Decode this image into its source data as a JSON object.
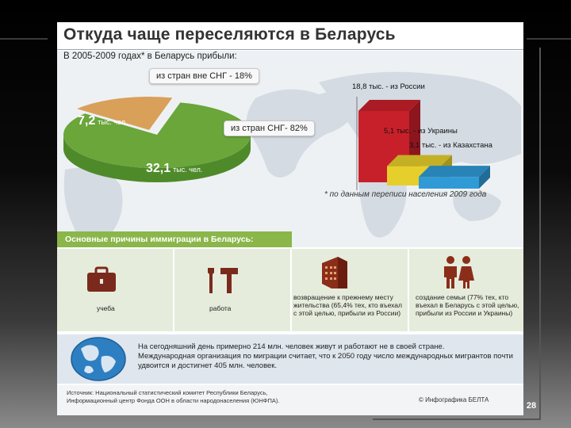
{
  "title": "Откуда чаще переселяются в Беларусь",
  "intro": "В 2005-2009 годах* в Беларусь прибыли:",
  "pie": {
    "callout_outside": "из стран вне СНГ - 18%",
    "callout_inside": "из стран СНГ- 82%",
    "small_value": "7,2",
    "small_unit": "тыс. чел.",
    "big_value": "32,1",
    "big_unit": "тыс. чел.",
    "shares": [
      18,
      82
    ],
    "colors": [
      "#d9a05a",
      "#6aa63a"
    ]
  },
  "bars": [
    {
      "label": "18,8 тыс. - из России",
      "value": 18.8,
      "color": "#c8202a"
    },
    {
      "label": "5,1 тыс. - из Украины",
      "value": 5.1,
      "color": "#e6cf2a"
    },
    {
      "label": "3,1 тыс. - из Казахстана",
      "value": 3.1,
      "color": "#2f9ad6"
    }
  ],
  "footnote": "* по данным переписи населения 2009 года",
  "reasons_header": "Основные причины иммиграции в Беларусь:",
  "reasons": [
    {
      "icon": "briefcase-icon",
      "label": "учеба"
    },
    {
      "icon": "tools-icon",
      "label": "работа"
    },
    {
      "icon": "building-icon",
      "label": "возвращение к прежнему месту жительства (65,4% тех, кто въехал с этой целью, прибыли из России)"
    },
    {
      "icon": "couple-icon",
      "label": "создание семьи (77% тех, кто въехал в Беларусь с этой целью, прибыли из России и Украины)"
    }
  ],
  "bottom_text_1": "На сегодняшний день примерно 214 млн. человек живут и работают не в своей стране.",
  "bottom_text_2": "Международная организация по миграции считает, что к 2050 году число международных мигрантов почти удвоится и достигнет 405 млн. человек.",
  "source_line_1": "Источник: Национальный статистический комитет Республики Беларусь,",
  "source_line_2": "Информационный центр Фонда ООН в области народонаселения (ЮНФПА).",
  "credit": "© Инфографика БЕЛТА",
  "page_number": "28"
}
